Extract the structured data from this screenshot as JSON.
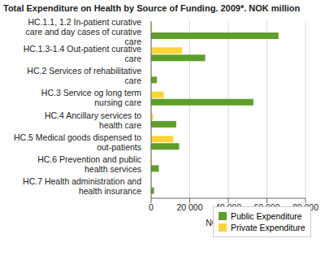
{
  "chart_data": {
    "type": "bar",
    "title": "Total Expenditure on Health by Source of Funding. 2009*. NOK million",
    "orientation": "horizontal",
    "x_label": "NOK million",
    "categories": [
      "HC.1.1, 1.2 In-patient curative care and day cases of curative care",
      "HC.1.3-1.4 Out-patient curative care",
      "HC.2 Services of rehabilitative care",
      "HC.3 Service og long term nursing care",
      "HC.4 Ancillary services to health care",
      "HC.5 Medical goods dispensed to out-patients",
      "HC.6 Prevention and public health services",
      "HC.7 Health administration and health insurance"
    ],
    "series": [
      {
        "name": "Public Expenditure",
        "color": "#5e9e2a",
        "values": [
          66000,
          28000,
          3000,
          53000,
          13000,
          14500,
          4000,
          1500
        ]
      },
      {
        "name": "Private Expenditure",
        "color": "#ffd43b",
        "values": [
          500,
          16000,
          300,
          6500,
          1000,
          11500,
          500,
          200
        ]
      }
    ],
    "xlim": [
      0,
      80000
    ],
    "xticks": [
      0,
      {
        "value": 20000,
        "label": "20 000"
      },
      {
        "value": 40000,
        "label": "40 000"
      },
      {
        "value": 60000,
        "label": "60 000"
      },
      {
        "value": 80000,
        "label": "80 000"
      }
    ],
    "grid": true,
    "legend": "lower right"
  }
}
